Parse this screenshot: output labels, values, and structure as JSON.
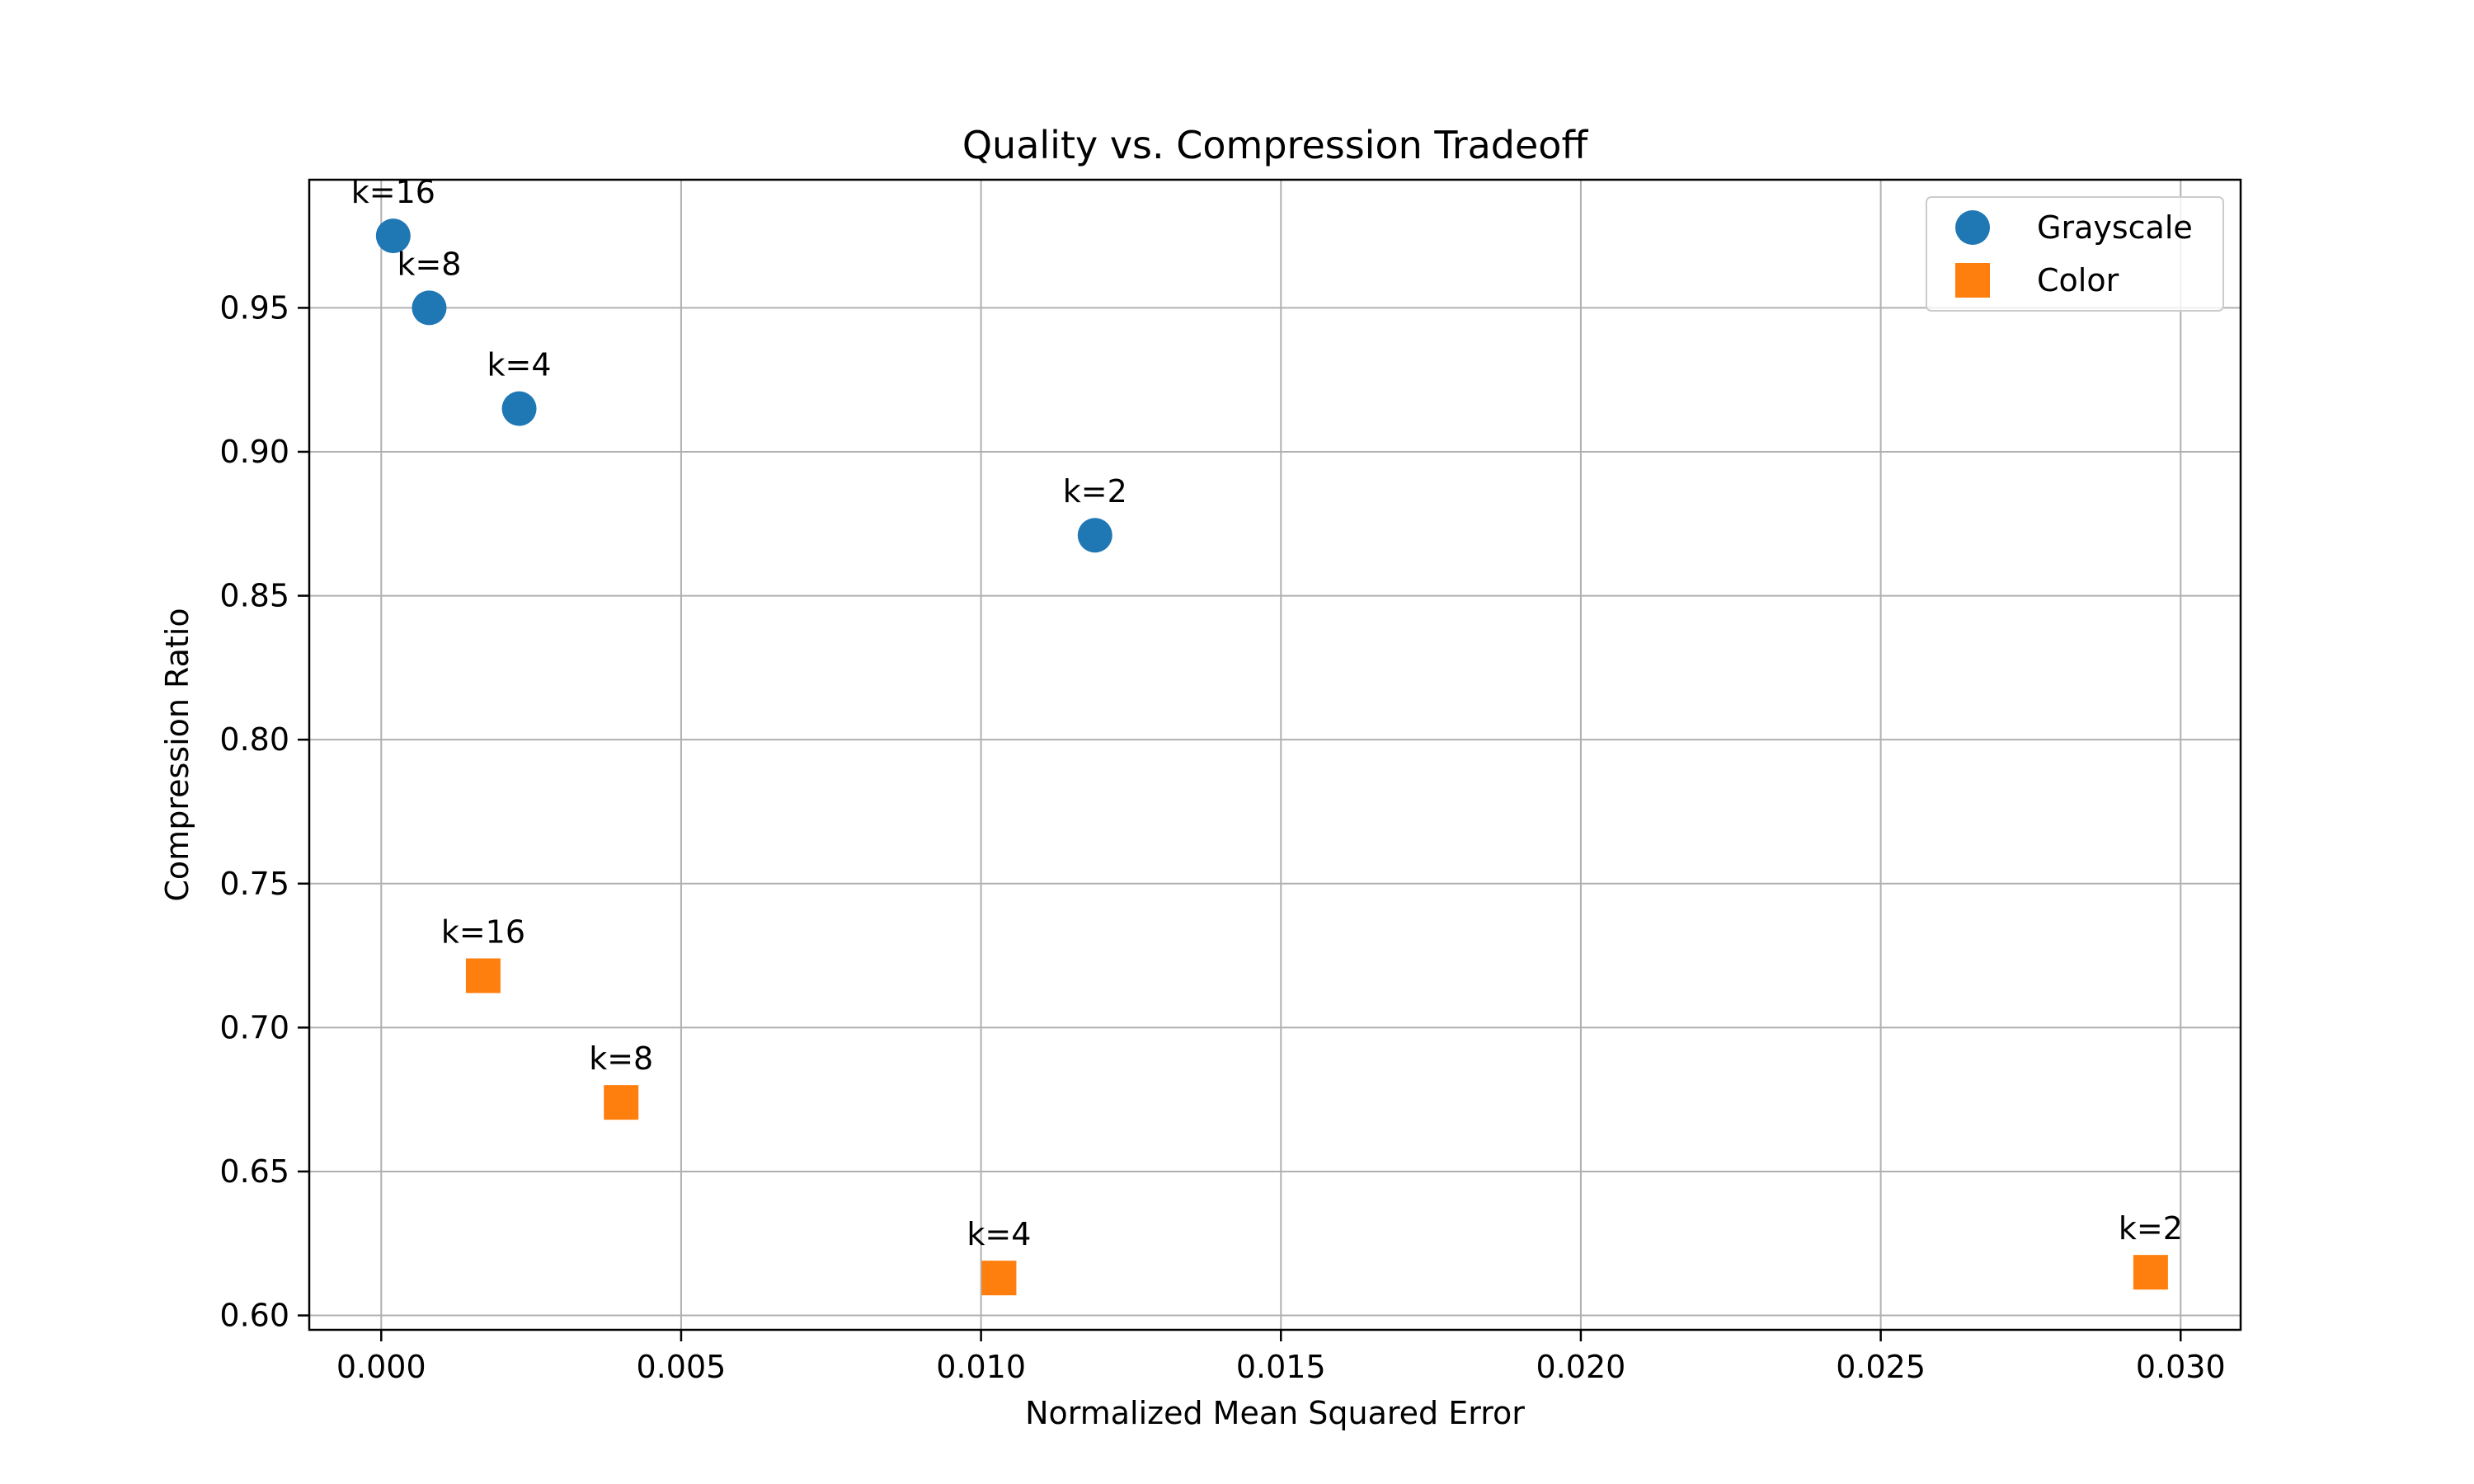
{
  "chart_data": {
    "type": "scatter",
    "title": "Quality vs. Compression Tradeoff",
    "xlabel": "Normalized Mean Squared Error",
    "ylabel": "Compression Ratio",
    "xlim": [
      -0.0012,
      0.031
    ],
    "ylim": [
      0.595,
      0.9945
    ],
    "xticks": [
      0.0,
      0.005,
      0.01,
      0.015,
      0.02,
      0.025,
      0.03
    ],
    "xtick_labels": [
      "0.000",
      "0.005",
      "0.010",
      "0.015",
      "0.020",
      "0.025",
      "0.030"
    ],
    "yticks": [
      0.6,
      0.65,
      0.7,
      0.75,
      0.8,
      0.85,
      0.9,
      0.95
    ],
    "ytick_labels": [
      "0.60",
      "0.65",
      "0.70",
      "0.75",
      "0.80",
      "0.85",
      "0.90",
      "0.95"
    ],
    "grid": true,
    "legend_position": "top-right",
    "series": [
      {
        "name": "Grayscale",
        "marker": "circle",
        "color": "#1f77b4",
        "points": [
          {
            "x": 0.0002,
            "y": 0.975,
            "label": "k=16"
          },
          {
            "x": 0.0008,
            "y": 0.95,
            "label": "k=8"
          },
          {
            "x": 0.0023,
            "y": 0.915,
            "label": "k=4"
          },
          {
            "x": 0.0119,
            "y": 0.871,
            "label": "k=2"
          }
        ]
      },
      {
        "name": "Color",
        "marker": "square",
        "color": "#ff7f0e",
        "points": [
          {
            "x": 0.0017,
            "y": 0.718,
            "label": "k=16"
          },
          {
            "x": 0.004,
            "y": 0.674,
            "label": "k=8"
          },
          {
            "x": 0.0103,
            "y": 0.613,
            "label": "k=4"
          },
          {
            "x": 0.0295,
            "y": 0.615,
            "label": "k=2"
          }
        ]
      }
    ]
  }
}
